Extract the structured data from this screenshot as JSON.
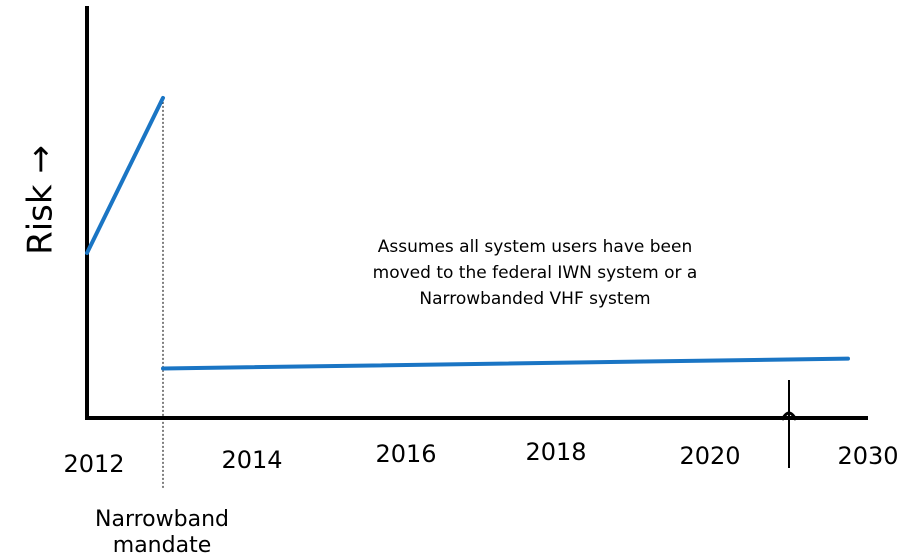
{
  "chart_data": {
    "type": "line",
    "title": "",
    "xlabel": "",
    "ylabel": "Risk →",
    "x_tick_labels": [
      "2012",
      "2014",
      "2016",
      "2018",
      "2020",
      "2030"
    ],
    "series": [
      {
        "color": "#1a75c4",
        "segments": [
          {
            "x_start": "2012",
            "x_end": "2013",
            "y_start": 0.5,
            "y_end": 0.97
          },
          {
            "x_start": "2013",
            "x_end": "2030",
            "y_start": 0.15,
            "y_end": 0.18
          }
        ]
      }
    ],
    "mandate_marker": {
      "label_line1": "Narrowband",
      "label_line2": "mandate",
      "x": "2013"
    },
    "annotation": {
      "lines": [
        "Assumes all system users have been",
        "moved to the federal IWN system or a",
        "Narrowbanded VHF system"
      ]
    },
    "axis_break": true,
    "grid": false
  }
}
